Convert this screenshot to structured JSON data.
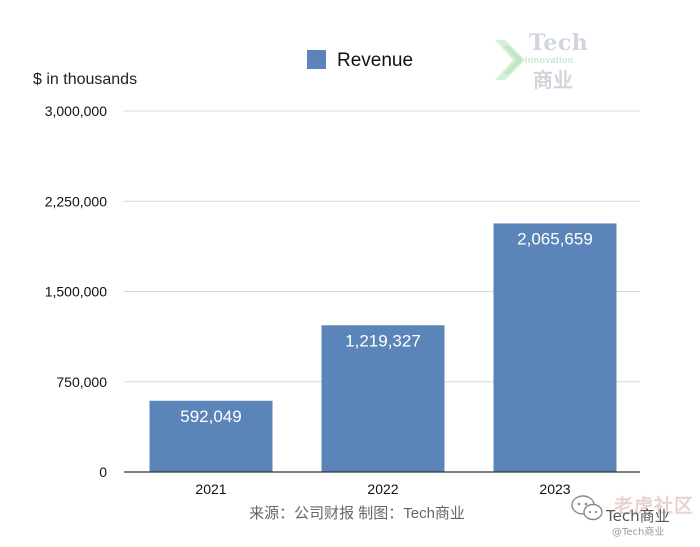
{
  "chart_data": {
    "type": "bar",
    "title": "",
    "categories": [
      "2021",
      "2022",
      "2023"
    ],
    "series": [
      {
        "name": "Revenue",
        "values": [
          592049,
          1219327,
          2065659
        ],
        "color": "#5b84b8"
      }
    ],
    "data_labels": [
      "592,049",
      "1,219,327",
      "2,065,659"
    ],
    "y_ticks": [
      0,
      750000,
      1500000,
      2250000,
      3000000
    ],
    "y_tick_labels": [
      "0",
      "750,000",
      "1,500,000",
      "2,250,000",
      "3,000,000"
    ],
    "ylim": [
      0,
      3000000
    ],
    "ylabel": "$ in thousands",
    "xlabel": "",
    "grid": true,
    "legend_position": "top-center"
  },
  "source_note": "来源：公司财报 制图：Tech商业",
  "watermark": {
    "logo_text": "Tech",
    "logo_subtext": "Innovation",
    "logo_cn": "商业",
    "social_brand": "老虎社区",
    "social_handle": "Tech商业",
    "social_handle_small": "@Tech商业"
  },
  "colors": {
    "bar": "#5b84b8",
    "grid": "#d9d9d9",
    "axis": "#333333",
    "text": "#111111",
    "label_text": "#ffffff",
    "source_text": "#666666"
  }
}
